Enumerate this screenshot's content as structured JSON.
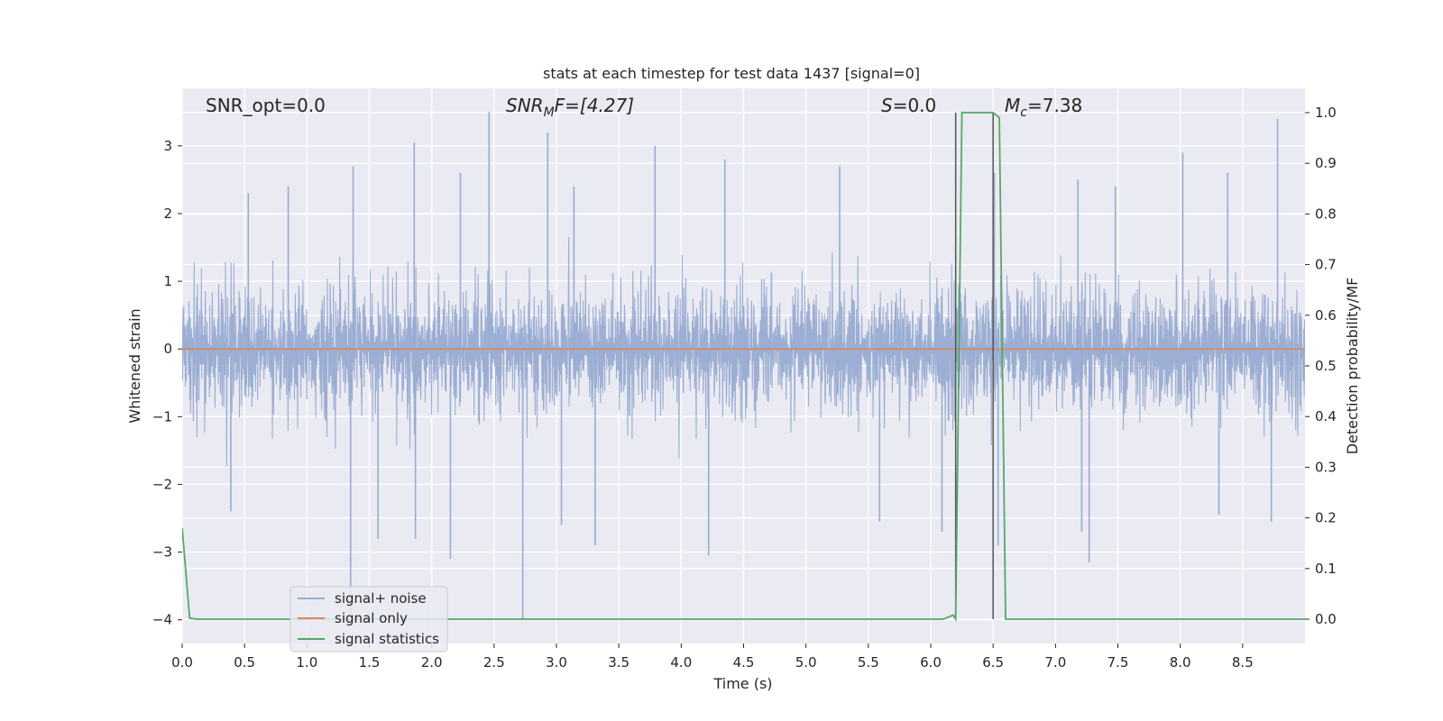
{
  "chart_data": {
    "type": "line",
    "title": "stats at each timestep for test data 1437 [signal=0]",
    "xlabel": "Time (s)",
    "ylabel_left": "Whitened strain",
    "ylabel_right": "Detection probability/MF",
    "xlim": [
      0.0,
      9.0
    ],
    "ylim_left": [
      -4.35,
      3.85
    ],
    "ylim_right": [
      -0.048,
      1.048
    ],
    "x_ticks": [
      "0.0",
      "0.5",
      "1.0",
      "1.5",
      "2.0",
      "2.5",
      "3.0",
      "3.5",
      "4.0",
      "4.5",
      "5.0",
      "5.5",
      "6.0",
      "6.5",
      "7.0",
      "7.5",
      "8.0",
      "8.5"
    ],
    "y_left_ticks": [
      "3",
      "2",
      "1",
      "0",
      "−1",
      "−2",
      "−3",
      "−4"
    ],
    "y_right_ticks": [
      "1.0",
      "0.9",
      "0.8",
      "0.7",
      "0.6",
      "0.5",
      "0.4",
      "0.3",
      "0.2",
      "0.1",
      "0.0"
    ],
    "grid": true,
    "legend_position": "lower-left",
    "colors": {
      "noise": "#98abd1",
      "signal": "#dd8452",
      "stats": "#55a868",
      "vline": "#555555",
      "background": "#eaeaf2"
    },
    "annotations": {
      "snr_opt": "SNR_opt=0.0",
      "snr_mf_main": "SNR",
      "snr_mf_sub": "M",
      "snr_mf_rest": "F=[4.27]",
      "s_var": "S",
      "s_rest": "=0.0",
      "mc_main": "M",
      "mc_sub": "c",
      "mc_rest": "=7.38"
    },
    "vertical_lines_x": [
      6.2,
      6.5
    ],
    "series": [
      {
        "name": "signal+ noise",
        "axis": "left",
        "description_values": "whitened noise, roughly Gaussian",
        "envelope": {
          "typical_max": 2.0,
          "typical_min": -2.0,
          "peak_max": 3.4,
          "peak_min": -4.0
        },
        "spikes_up": [
          [
            0.53,
            2.3
          ],
          [
            0.85,
            2.4
          ],
          [
            1.37,
            2.7
          ],
          [
            1.86,
            3.05
          ],
          [
            2.23,
            2.6
          ],
          [
            2.46,
            3.5
          ],
          [
            2.93,
            3.2
          ],
          [
            3.14,
            2.4
          ],
          [
            3.79,
            3.0
          ],
          [
            4.35,
            2.8
          ],
          [
            5.27,
            2.7
          ],
          [
            6.51,
            2.6
          ],
          [
            7.18,
            2.5
          ],
          [
            7.48,
            2.4
          ],
          [
            8.02,
            2.9
          ],
          [
            8.38,
            2.6
          ],
          [
            8.78,
            3.4
          ]
        ],
        "spikes_down": [
          [
            0.39,
            -2.4
          ],
          [
            1.35,
            -4.0
          ],
          [
            1.57,
            -2.8
          ],
          [
            1.87,
            -2.8
          ],
          [
            2.15,
            -3.1
          ],
          [
            2.73,
            -4.0
          ],
          [
            3.04,
            -2.6
          ],
          [
            3.31,
            -2.9
          ],
          [
            4.22,
            -3.05
          ],
          [
            5.59,
            -2.55
          ],
          [
            6.09,
            -2.7
          ],
          [
            6.54,
            -2.9
          ],
          [
            7.21,
            -2.7
          ],
          [
            7.27,
            -3.15
          ],
          [
            8.31,
            -2.45
          ],
          [
            8.73,
            -2.55
          ]
        ]
      },
      {
        "name": "signal only",
        "axis": "left",
        "x": [
          0.0,
          9.0
        ],
        "y": [
          0.0,
          0.0
        ]
      },
      {
        "name": "signal statistics",
        "axis": "right",
        "x": [
          0.0,
          0.06,
          0.12,
          6.1,
          6.18,
          6.2,
          6.25,
          6.5,
          6.55,
          6.6,
          6.68,
          9.0
        ],
        "y": [
          0.18,
          0.002,
          0.0,
          0.0,
          0.008,
          0.0,
          1.0,
          1.0,
          0.99,
          0.0,
          0.0,
          0.0
        ]
      }
    ],
    "legend": [
      "signal+ noise",
      "signal only",
      "signal statistics"
    ]
  }
}
